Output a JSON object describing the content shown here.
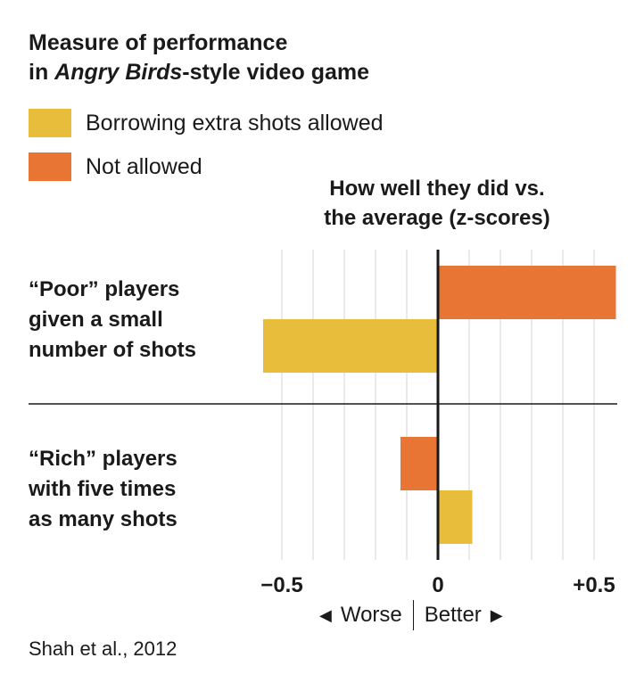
{
  "title": {
    "line1": "Measure of performance",
    "line2_prefix": "in ",
    "line2_italic": "Angry Birds",
    "line2_suffix": "-style video game"
  },
  "legend": [
    {
      "label": "Borrowing extra shots allowed",
      "color": "#e8bd3b"
    },
    {
      "label": "Not allowed",
      "color": "#e87533"
    }
  ],
  "subtitle": {
    "line1": "How well they did vs.",
    "line2": "the average (z-scores)"
  },
  "direction": {
    "left": "Worse",
    "right": "Better",
    "left_icon": "triangle-left-icon",
    "right_icon": "triangle-right-icon"
  },
  "source": "Shah et al., 2012",
  "chart_data": {
    "type": "bar",
    "orientation": "horizontal",
    "categories": [
      [
        "“Poor” players",
        "given a small",
        "number of shots"
      ],
      [
        "“Rich” players",
        "with five times",
        "as many shots"
      ]
    ],
    "series": [
      {
        "name": "Borrowing extra shots allowed",
        "color": "#e8bd3b",
        "values": [
          -0.56,
          0.11
        ]
      },
      {
        "name": "Not allowed",
        "color": "#e87533",
        "values": [
          0.57,
          -0.12
        ]
      }
    ],
    "xlim": [
      -0.6,
      0.6
    ],
    "xticks": [
      -0.5,
      0,
      0.5
    ],
    "xtick_labels": [
      "−0.5",
      "0",
      "+0.5"
    ],
    "grid": true
  }
}
